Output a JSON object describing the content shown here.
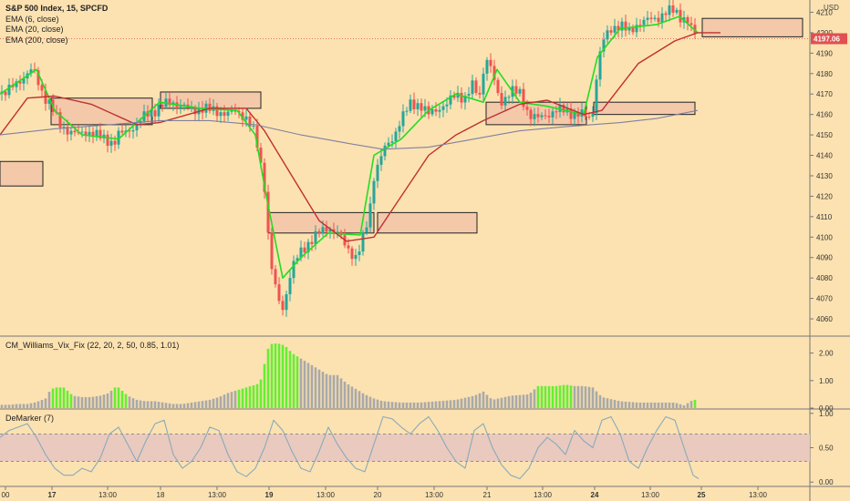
{
  "header": {
    "symbol_line": "S&P 500 Index, 15, SPCFD",
    "indicators": [
      "EMA (6, close)",
      "EMA (20, close)",
      "EMA (200, close)"
    ],
    "currency": "USD",
    "last_price": "4197.06"
  },
  "colors": {
    "background": "#FCE2B1",
    "up_candle": "#26A69A",
    "down_candle": "#EF5350",
    "ema6": "#22DD22",
    "ema20": "#C03030",
    "ema200": "#8080A0",
    "zone_fill": "#F0C0A8",
    "zone_border": "#222222",
    "vix_gray": "#A9A9A9",
    "vix_lime": "#66EE33",
    "demarker_line": "#88AABB",
    "demarker_band": "#E8C8C0"
  },
  "chart_data": [
    {
      "type": "candlestick",
      "panel": "price",
      "title": "S&P 500 Index, 15, SPCFD",
      "ylabel": "USD",
      "ylim": [
        4052,
        4216
      ],
      "yticks": [
        4060,
        4070,
        4080,
        4090,
        4100,
        4110,
        4120,
        4130,
        4140,
        4150,
        4160,
        4170,
        4180,
        4190,
        4200,
        4210
      ],
      "xticks": [
        "00",
        "17",
        "13:00",
        "18",
        "13:00",
        "19",
        "13:00",
        "20",
        "13:00",
        "21",
        "13:00",
        "24",
        "13:00",
        "25",
        "13:00"
      ],
      "bold_xticks": [
        "17",
        "19",
        "24",
        "25"
      ],
      "last_price": 4197.06,
      "series": [
        {
          "name": "EMA (6, close)",
          "x": [
            0,
            40,
            60,
            90,
            130,
            150,
            175,
            220,
            260,
            280,
            292,
            310,
            330,
            360,
            395,
            410,
            440,
            470,
            500,
            530,
            545,
            570,
            600,
            640,
            655,
            680,
            720,
            745,
            765
          ],
          "y": [
            4170,
            4182,
            4162,
            4150,
            4148,
            4156,
            4166,
            4163,
            4162,
            4150,
            4120,
            4080,
            4090,
            4102,
            4101,
            4140,
            4148,
            4162,
            4170,
            4166,
            4182,
            4166,
            4164,
            4160,
            4188,
            4202,
            4204,
            4208,
            4200
          ]
        },
        {
          "name": "EMA (20, close)",
          "x": [
            0,
            30,
            60,
            100,
            150,
            175,
            230,
            270,
            290,
            320,
            350,
            380,
            410,
            440,
            470,
            500,
            530,
            570,
            600,
            640,
            660,
            700,
            740,
            765,
            790
          ],
          "y": [
            4150,
            4168,
            4169,
            4165,
            4155,
            4156,
            4163,
            4163,
            4152,
            4130,
            4108,
            4098,
            4100,
            4120,
            4140,
            4150,
            4157,
            4165,
            4167,
            4160,
            4162,
            4185,
            4196,
            4200,
            4200
          ]
        },
        {
          "name": "EMA (200, close)",
          "x": [
            0,
            60,
            120,
            175,
            230,
            280,
            330,
            380,
            420,
            470,
            520,
            570,
            620,
            680,
            720,
            765
          ],
          "y": [
            4150,
            4153,
            4155,
            4157,
            4157,
            4155,
            4150,
            4146,
            4143,
            4144,
            4148,
            4152,
            4154,
            4156,
            4158,
            4162
          ]
        }
      ],
      "annotations": [
        {
          "type": "zone",
          "x_start": 0,
          "x_end": 47,
          "y_low": 4125,
          "y_high": 4137
        },
        {
          "type": "zone",
          "x_start": 56,
          "x_end": 167,
          "y_low": 4155,
          "y_high": 4168
        },
        {
          "type": "zone",
          "x_start": 176,
          "x_end": 286,
          "y_low": 4163,
          "y_high": 4171
        },
        {
          "type": "zone",
          "x_start": 295,
          "x_end": 410,
          "y_low": 4102,
          "y_high": 4112
        },
        {
          "type": "zone",
          "x_start": 414,
          "x_end": 523,
          "y_low": 4102,
          "y_high": 4112
        },
        {
          "type": "zone",
          "x_start": 533,
          "x_end": 643,
          "y_low": 4155,
          "y_high": 4166
        },
        {
          "type": "zone",
          "x_start": 651,
          "x_end": 762,
          "y_low": 4160,
          "y_high": 4166
        },
        {
          "type": "zone",
          "x_start": 770,
          "x_end": 880,
          "y_low": 4198,
          "y_high": 4207
        }
      ],
      "ohlc_anchors": {
        "x": [
          0,
          10,
          20,
          30,
          35,
          40,
          45,
          50,
          55,
          60,
          66,
          75,
          85,
          95,
          105,
          115,
          125,
          130,
          140,
          150,
          160,
          170,
          180,
          190,
          200,
          210,
          220,
          235,
          250,
          260,
          270,
          280,
          285,
          290,
          295,
          300,
          305,
          310,
          315,
          320,
          330,
          340,
          350,
          360,
          370,
          380,
          390,
          395,
          400,
          405,
          410,
          420,
          430,
          440,
          450,
          460,
          470,
          480,
          490,
          500,
          510,
          515,
          520,
          525,
          530,
          535,
          540,
          545,
          550,
          560,
          570,
          580,
          590,
          600,
          610,
          620,
          630,
          640,
          645,
          650,
          655,
          660,
          670,
          680,
          690,
          700,
          710,
          720,
          730,
          740,
          745,
          750,
          755,
          760,
          765
        ],
        "close": [
          4170,
          4172,
          4176,
          4180,
          4182,
          4178,
          4172,
          4168,
          4165,
          4160,
          4155,
          4152,
          4150,
          4152,
          4150,
          4148,
          4146,
          4150,
          4152,
          4155,
          4160,
          4162,
          4165,
          4166,
          4164,
          4162,
          4163,
          4162,
          4160,
          4162,
          4158,
          4150,
          4138,
          4125,
          4095,
          4078,
          4070,
          4065,
          4075,
          4085,
          4093,
          4098,
          4102,
          4105,
          4102,
          4095,
          4090,
          4095,
          4102,
          4112,
          4130,
          4142,
          4148,
          4158,
          4165,
          4165,
          4160,
          4163,
          4165,
          4170,
          4168,
          4172,
          4175,
          4166,
          4182,
          4188,
          4180,
          4170,
          4166,
          4172,
          4170,
          4160,
          4158,
          4160,
          4162,
          4162,
          4160,
          4160,
          4158,
          4162,
          4182,
          4195,
          4202,
          4204,
          4200,
          4205,
          4206,
          4207,
          4210,
          4211,
          4208,
          4207,
          4205,
          4200,
          4197
        ]
      }
    },
    {
      "type": "bar",
      "panel": "indicator",
      "title": "CM_Williams_Vix_Fix (22, 20, 2, 50, 0.85, 1.01)",
      "ylim": [
        0,
        2.45
      ],
      "yticks": [
        "0.00",
        "1.00",
        "2.00"
      ],
      "series": [
        {
          "x": [
            0,
            10,
            20,
            30,
            40,
            50,
            55,
            60,
            70,
            80,
            90,
            100,
            110,
            120,
            125,
            130,
            140,
            150,
            160,
            170,
            180,
            190,
            200,
            210,
            220,
            230,
            240,
            250,
            260,
            270,
            280,
            285,
            290,
            295,
            300,
            305,
            310,
            315,
            320,
            330,
            340,
            350,
            360,
            370,
            380,
            390,
            400,
            410,
            420,
            440,
            460,
            480,
            500,
            520,
            530,
            540,
            560,
            580,
            590,
            600,
            610,
            620,
            630,
            640,
            650,
            660,
            680,
            700,
            720,
            740,
            750,
            760,
            765
          ],
          "values": [
            0.12,
            0.12,
            0.15,
            0.15,
            0.22,
            0.35,
            0.65,
            0.75,
            0.75,
            0.45,
            0.4,
            0.4,
            0.45,
            0.55,
            0.75,
            0.75,
            0.45,
            0.3,
            0.25,
            0.25,
            0.2,
            0.15,
            0.15,
            0.2,
            0.25,
            0.3,
            0.4,
            0.55,
            0.65,
            0.75,
            0.85,
            0.9,
            1.6,
            2.3,
            2.35,
            2.35,
            2.3,
            2.2,
            2.0,
            1.8,
            1.6,
            1.4,
            1.2,
            1.2,
            0.9,
            0.7,
            0.5,
            0.35,
            0.25,
            0.2,
            0.2,
            0.25,
            0.3,
            0.45,
            0.6,
            0.3,
            0.45,
            0.5,
            0.8,
            0.8,
            0.8,
            0.85,
            0.8,
            0.8,
            0.75,
            0.4,
            0.25,
            0.2,
            0.2,
            0.2,
            0.1,
            0.3,
            0.3
          ],
          "lime": [
            false,
            false,
            false,
            false,
            false,
            false,
            true,
            true,
            true,
            false,
            false,
            false,
            false,
            false,
            true,
            true,
            false,
            false,
            false,
            false,
            false,
            false,
            false,
            false,
            false,
            false,
            false,
            false,
            true,
            true,
            true,
            true,
            true,
            true,
            true,
            true,
            true,
            true,
            true,
            false,
            false,
            false,
            false,
            false,
            false,
            false,
            false,
            false,
            false,
            false,
            false,
            false,
            false,
            false,
            false,
            false,
            false,
            false,
            true,
            true,
            true,
            true,
            false,
            false,
            false,
            false,
            false,
            false,
            false,
            false,
            false,
            true,
            true
          ]
        }
      ]
    },
    {
      "type": "line",
      "panel": "indicator",
      "title": "DeMarker (7)",
      "ylim": [
        -0.05,
        1.05
      ],
      "yticks": [
        "0.00",
        "0.50",
        "1.00"
      ],
      "levels": [
        0.3,
        0.7
      ],
      "series": [
        {
          "x": [
            0,
            10,
            20,
            30,
            40,
            50,
            60,
            70,
            80,
            90,
            100,
            110,
            120,
            130,
            140,
            150,
            160,
            170,
            180,
            190,
            200,
            210,
            220,
            230,
            240,
            250,
            260,
            270,
            280,
            290,
            300,
            310,
            320,
            330,
            340,
            350,
            360,
            370,
            380,
            390,
            400,
            410,
            420,
            430,
            440,
            450,
            460,
            470,
            480,
            490,
            500,
            510,
            520,
            530,
            540,
            550,
            560,
            570,
            580,
            590,
            600,
            610,
            620,
            630,
            640,
            650,
            660,
            670,
            680,
            690,
            700,
            710,
            720,
            730,
            740,
            750,
            760,
            766
          ],
          "values": [
            0.65,
            0.75,
            0.8,
            0.85,
            0.65,
            0.4,
            0.2,
            0.1,
            0.1,
            0.2,
            0.15,
            0.35,
            0.7,
            0.8,
            0.55,
            0.3,
            0.6,
            0.85,
            0.9,
            0.4,
            0.2,
            0.3,
            0.5,
            0.8,
            0.75,
            0.4,
            0.15,
            0.08,
            0.2,
            0.5,
            0.9,
            0.75,
            0.45,
            0.2,
            0.15,
            0.45,
            0.8,
            0.55,
            0.35,
            0.2,
            0.15,
            0.55,
            0.95,
            0.92,
            0.8,
            0.7,
            0.85,
            0.95,
            0.75,
            0.5,
            0.3,
            0.2,
            0.75,
            0.85,
            0.5,
            0.25,
            0.1,
            0.05,
            0.2,
            0.5,
            0.65,
            0.55,
            0.4,
            0.75,
            0.6,
            0.5,
            0.9,
            0.95,
            0.7,
            0.3,
            0.2,
            0.5,
            0.75,
            0.95,
            0.9,
            0.5,
            0.1,
            0.05
          ]
        }
      ]
    }
  ]
}
